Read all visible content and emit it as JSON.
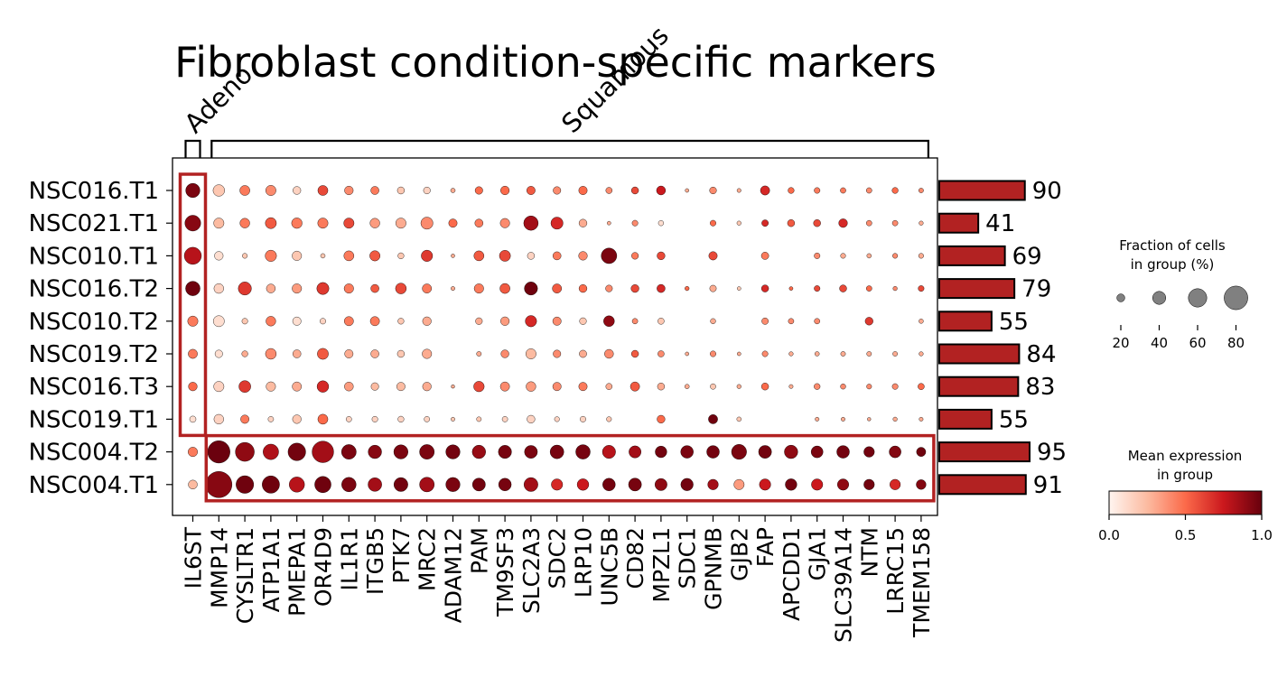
{
  "chart_data": {
    "type": "dotplot",
    "title": "Fibroblast condition-specific markers",
    "groups_of_genes": [
      {
        "label": "Adeno",
        "genes": [
          "IL6ST"
        ]
      },
      {
        "label": "Squamous",
        "genes": [
          "MMP14",
          "CYSLTR1",
          "ATP1A1",
          "PMEPA1",
          "OR4D9",
          "IL1R1",
          "ITGB5",
          "PTK7",
          "MRC2",
          "ADAM12",
          "PAM",
          "TM9SF3",
          "SLC2A3",
          "SDC2",
          "LRP10",
          "UNC5B",
          "CD82",
          "MPZL1",
          "SDC1",
          "GPNMB",
          "GJB2",
          "FAP",
          "APCDD1",
          "GJA1",
          "SLC39A14",
          "NTM",
          "LRRC15",
          "TMEM158"
        ]
      }
    ],
    "genes": [
      "IL6ST",
      "MMP14",
      "CYSLTR1",
      "ATP1A1",
      "PMEPA1",
      "OR4D9",
      "IL1R1",
      "ITGB5",
      "PTK7",
      "MRC2",
      "ADAM12",
      "PAM",
      "TM9SF3",
      "SLC2A3",
      "SDC2",
      "LRP10",
      "UNC5B",
      "CD82",
      "MPZL1",
      "SDC1",
      "GPNMB",
      "GJB2",
      "FAP",
      "APCDD1",
      "GJA1",
      "SLC39A14",
      "NTM",
      "LRRC15",
      "TMEM158"
    ],
    "samples": [
      "NSC016.T1",
      "NSC021.T1",
      "NSC010.T1",
      "NSC016.T2",
      "NSC010.T2",
      "NSC019.T2",
      "NSC016.T3",
      "NSC019.T1",
      "NSC004.T2",
      "NSC004.T1"
    ],
    "sample_cell_counts": [
      90,
      41,
      69,
      79,
      55,
      84,
      83,
      55,
      95,
      91
    ],
    "fraction_pct": [
      [
        44,
        34,
        28,
        29,
        20,
        28,
        23,
        21,
        17,
        16,
        7,
        19,
        23,
        22,
        19,
        22,
        14,
        17,
        24,
        4,
        16,
        5,
        25,
        13,
        12,
        11,
        11,
        13,
        8
      ],
      [
        50,
        29,
        27,
        32,
        30,
        29,
        29,
        27,
        29,
        36,
        22,
        21,
        26,
        45,
        36,
        20,
        4,
        12,
        10,
        0,
        12,
        6,
        15,
        17,
        17,
        23,
        11,
        11,
        6
      ],
      [
        55,
        23,
        9,
        33,
        26,
        7,
        28,
        29,
        13,
        33,
        4,
        28,
        32,
        17,
        21,
        23,
        49,
        16,
        20,
        0,
        22,
        0,
        18,
        0,
        12,
        9,
        7,
        9,
        9
      ],
      [
        45,
        27,
        40,
        24,
        26,
        36,
        26,
        21,
        31,
        25,
        5,
        26,
        28,
        40,
        25,
        20,
        16,
        20,
        21,
        6,
        15,
        4,
        17,
        4,
        12,
        17,
        11,
        6,
        12
      ],
      [
        29,
        32,
        12,
        27,
        22,
        12,
        25,
        25,
        13,
        23,
        0,
        16,
        23,
        33,
        22,
        16,
        31,
        11,
        14,
        0,
        10,
        0,
        15,
        11,
        11,
        0,
        20,
        0,
        7
      ],
      [
        25,
        19,
        13,
        31,
        21,
        32,
        22,
        21,
        17,
        26,
        0,
        8,
        20,
        29,
        19,
        18,
        24,
        17,
        14,
        4,
        12,
        4,
        12,
        6,
        7,
        8,
        8,
        8,
        6
      ],
      [
        23,
        29,
        35,
        26,
        25,
        34,
        24,
        19,
        22,
        23,
        3,
        30,
        25,
        27,
        22,
        22,
        14,
        25,
        17,
        7,
        11,
        6,
        17,
        5,
        13,
        10,
        9,
        12,
        14
      ],
      [
        14,
        27,
        22,
        11,
        23,
        28,
        11,
        12,
        13,
        11,
        5,
        8,
        11,
        20,
        9,
        12,
        9,
        0,
        20,
        0,
        25,
        7,
        0,
        0,
        5,
        5,
        3,
        6,
        5
      ],
      [
        26,
        75,
        62,
        49,
        57,
        72,
        46,
        41,
        44,
        46,
        44,
        41,
        40,
        39,
        42,
        45,
        40,
        36,
        34,
        38,
        38,
        47,
        39,
        41,
        35,
        38,
        30,
        35,
        25
      ],
      [
        24,
        90,
        57,
        56,
        48,
        52,
        45,
        42,
        43,
        46,
        44,
        39,
        38,
        43,
        33,
        34,
        38,
        39,
        36,
        37,
        30,
        29,
        33,
        34,
        33,
        33,
        30,
        30,
        27
      ]
    ],
    "mean_expression": [
      [
        0.95,
        0.2,
        0.45,
        0.4,
        0.15,
        0.6,
        0.4,
        0.45,
        0.2,
        0.15,
        0.3,
        0.5,
        0.5,
        0.55,
        0.4,
        0.5,
        0.4,
        0.6,
        0.75,
        0.3,
        0.4,
        0.3,
        0.7,
        0.5,
        0.45,
        0.45,
        0.4,
        0.5,
        0.4
      ],
      [
        0.92,
        0.25,
        0.45,
        0.55,
        0.45,
        0.45,
        0.6,
        0.35,
        0.3,
        0.4,
        0.5,
        0.45,
        0.4,
        0.85,
        0.7,
        0.3,
        0.3,
        0.4,
        0.1,
        0.0,
        0.5,
        0.2,
        0.7,
        0.55,
        0.6,
        0.7,
        0.4,
        0.4,
        0.3
      ],
      [
        0.8,
        0.1,
        0.2,
        0.45,
        0.2,
        0.2,
        0.45,
        0.55,
        0.2,
        0.65,
        0.3,
        0.55,
        0.6,
        0.15,
        0.45,
        0.4,
        0.95,
        0.45,
        0.6,
        0.0,
        0.6,
        0.0,
        0.45,
        0.0,
        0.4,
        0.3,
        0.3,
        0.4,
        0.3
      ],
      [
        0.98,
        0.15,
        0.65,
        0.3,
        0.35,
        0.65,
        0.45,
        0.55,
        0.6,
        0.45,
        0.3,
        0.45,
        0.55,
        0.98,
        0.55,
        0.5,
        0.4,
        0.6,
        0.7,
        0.5,
        0.3,
        0.2,
        0.7,
        0.5,
        0.6,
        0.6,
        0.5,
        0.4,
        0.6
      ],
      [
        0.45,
        0.1,
        0.2,
        0.45,
        0.1,
        0.15,
        0.45,
        0.45,
        0.2,
        0.3,
        0.0,
        0.3,
        0.35,
        0.7,
        0.4,
        0.2,
        0.9,
        0.4,
        0.2,
        0.0,
        0.3,
        0.0,
        0.4,
        0.4,
        0.4,
        0.0,
        0.65,
        0.0,
        0.3
      ],
      [
        0.45,
        0.1,
        0.3,
        0.4,
        0.3,
        0.55,
        0.3,
        0.3,
        0.2,
        0.3,
        0.0,
        0.3,
        0.4,
        0.25,
        0.4,
        0.3,
        0.4,
        0.55,
        0.4,
        0.3,
        0.4,
        0.3,
        0.4,
        0.3,
        0.3,
        0.3,
        0.3,
        0.3,
        0.3
      ],
      [
        0.5,
        0.15,
        0.65,
        0.25,
        0.3,
        0.7,
        0.35,
        0.25,
        0.25,
        0.3,
        0.3,
        0.6,
        0.4,
        0.35,
        0.4,
        0.45,
        0.3,
        0.55,
        0.3,
        0.3,
        0.2,
        0.3,
        0.5,
        0.3,
        0.4,
        0.4,
        0.4,
        0.4,
        0.5
      ],
      [
        0.1,
        0.15,
        0.45,
        0.15,
        0.2,
        0.5,
        0.15,
        0.15,
        0.15,
        0.15,
        0.2,
        0.2,
        0.15,
        0.15,
        0.15,
        0.15,
        0.2,
        0.0,
        0.5,
        0.0,
        0.98,
        0.2,
        0.0,
        0.0,
        0.3,
        0.3,
        0.3,
        0.3,
        0.3
      ],
      [
        0.45,
        0.99,
        0.9,
        0.82,
        0.97,
        0.85,
        0.95,
        0.92,
        0.95,
        0.95,
        0.97,
        0.88,
        0.96,
        0.95,
        0.96,
        0.96,
        0.8,
        0.85,
        0.97,
        0.95,
        0.97,
        0.95,
        0.97,
        0.9,
        0.95,
        0.97,
        0.97,
        0.93,
        0.98
      ],
      [
        0.25,
        0.92,
        0.98,
        0.98,
        0.8,
        0.98,
        0.95,
        0.85,
        0.97,
        0.85,
        0.95,
        0.97,
        0.96,
        0.85,
        0.7,
        0.75,
        0.97,
        0.96,
        0.9,
        0.97,
        0.85,
        0.35,
        0.75,
        0.97,
        0.75,
        0.9,
        0.97,
        0.7,
        0.93
      ]
    ],
    "highlight_boxes": [
      {
        "genes": [
          "IL6ST"
        ],
        "samples": [
          "NSC016.T1",
          "NSC019.T1"
        ],
        "color": "#b22222"
      },
      {
        "genes": [
          "MMP14",
          "TMEM158"
        ],
        "samples": [
          "NSC004.T2",
          "NSC004.T1"
        ],
        "color": "#b22222"
      }
    ],
    "bar_color": "#b22222",
    "size_legend": {
      "title_line1": "Fraction of cells",
      "title_line2": "in group (%)",
      "ticks": [
        20,
        40,
        60,
        80
      ]
    },
    "color_legend": {
      "title_line1": "Mean expression",
      "title_line2": "in group",
      "ticks": [
        "0.0",
        "0.5",
        "1.0"
      ],
      "cmap": "Reds"
    }
  }
}
